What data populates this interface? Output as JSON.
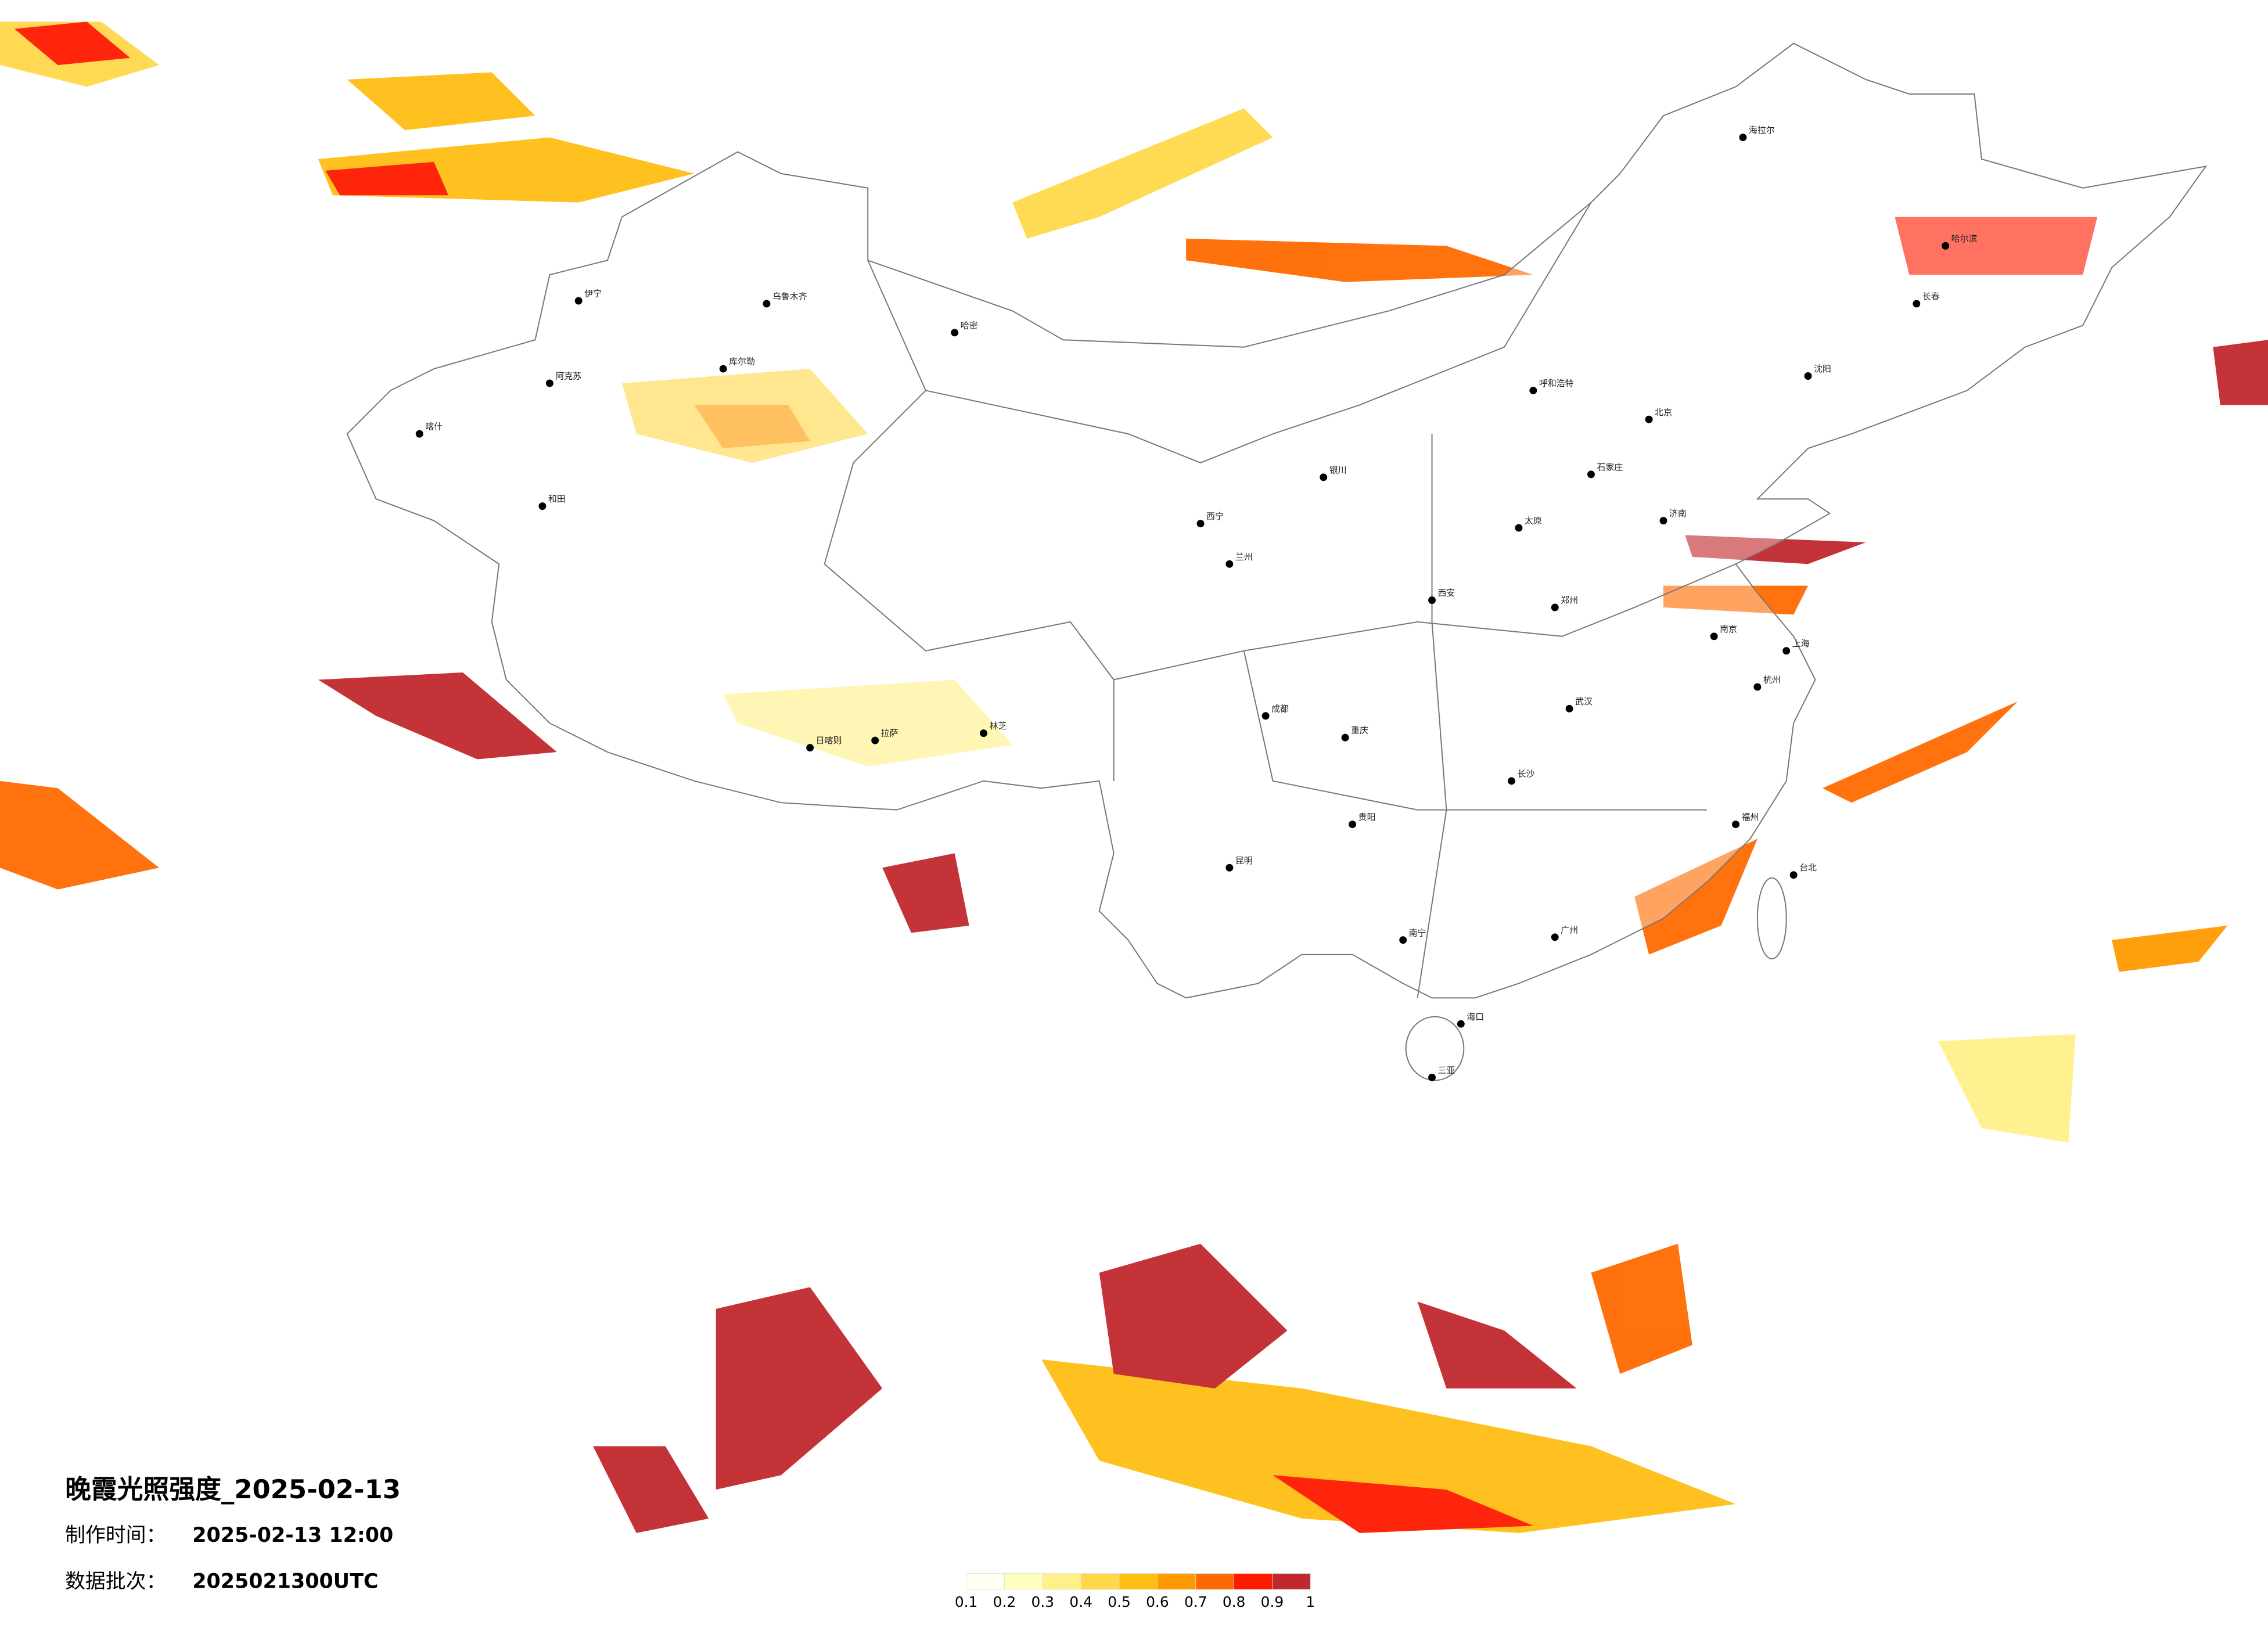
{
  "header": {
    "title": "晚霞光照强度_2025-02-13",
    "made_label": "制作时间：",
    "made_time": "2025-02-13 12:00",
    "batch_label": "数据批次：",
    "batch": "2025021300UTC"
  },
  "colorbar": {
    "ticks": [
      0.1,
      0.2,
      0.3,
      0.4,
      0.5,
      0.6,
      0.7,
      0.8,
      0.9,
      1
    ],
    "colors": [
      "#fffff2",
      "#ffffc0",
      "#fff08a",
      "#ffd84a",
      "#ffbe14",
      "#ff9a00",
      "#ff6a00",
      "#ff1a00",
      "#c0282d"
    ]
  },
  "cities": [
    "哈密",
    "乌鲁木齐",
    "库尔勒",
    "阿克苏",
    "喀什",
    "和田",
    "伊宁",
    "拉萨",
    "日喀则",
    "林芝",
    "西宁",
    "兰州",
    "成都",
    "重庆",
    "昆明",
    "贵阳",
    "南宁",
    "广州",
    "海口",
    "长沙",
    "武汉",
    "郑州",
    "西安",
    "太原",
    "北京",
    "石家庄",
    "济南",
    "南京",
    "上海",
    "杭州",
    "福州",
    "台北",
    "沈阳",
    "长春",
    "哈尔滨",
    "呼和浩特",
    "银川",
    "海拉尔",
    "三亚"
  ]
}
